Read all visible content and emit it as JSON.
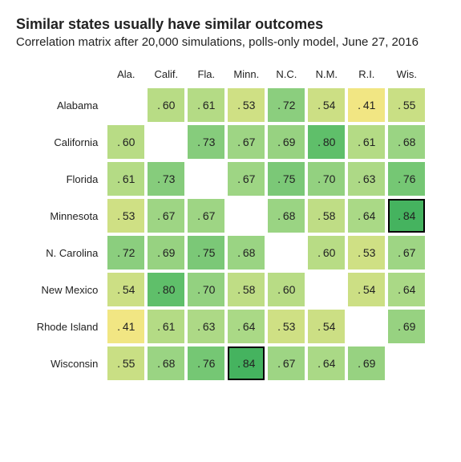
{
  "title": "Similar states usually have similar outcomes",
  "subtitle": "Correlation matrix after 20,000 simulations, polls-only model, June 27, 2016",
  "matrix": {
    "type": "heatmap",
    "col_labels": [
      "Ala.",
      "Calif.",
      "Fla.",
      "Minn.",
      "N.C.",
      "N.M.",
      "R.I.",
      "Wis."
    ],
    "row_labels": [
      "Alabama",
      "California",
      "Florida",
      "Minnesota",
      "N. Carolina",
      "New Mexico",
      "Rhode Island",
      "Wisconsin"
    ],
    "values": [
      [
        null,
        0.6,
        0.61,
        0.53,
        0.72,
        0.54,
        0.41,
        0.55
      ],
      [
        0.6,
        null,
        0.73,
        0.67,
        0.69,
        0.8,
        0.61,
        0.68
      ],
      [
        0.61,
        0.73,
        null,
        0.67,
        0.75,
        0.7,
        0.63,
        0.76
      ],
      [
        0.53,
        0.67,
        0.67,
        null,
        0.68,
        0.58,
        0.64,
        0.84
      ],
      [
        0.72,
        0.69,
        0.75,
        0.68,
        null,
        0.6,
        0.53,
        0.67
      ],
      [
        0.54,
        0.8,
        0.7,
        0.58,
        0.6,
        null,
        0.54,
        0.64
      ],
      [
        0.41,
        0.61,
        0.63,
        0.64,
        0.53,
        0.54,
        null,
        0.69
      ],
      [
        0.55,
        0.68,
        0.76,
        0.84,
        0.67,
        0.64,
        0.69,
        null
      ]
    ],
    "highlighted": [
      [
        3,
        7
      ],
      [
        7,
        3
      ]
    ],
    "color_scale": {
      "stops": [
        {
          "v": 0.4,
          "color": "#f4e683"
        },
        {
          "v": 0.55,
          "color": "#c9df84"
        },
        {
          "v": 0.65,
          "color": "#a6d886"
        },
        {
          "v": 0.72,
          "color": "#8bce7e"
        },
        {
          "v": 0.8,
          "color": "#5fbf6a"
        },
        {
          "v": 0.85,
          "color": "#3eb05c"
        }
      ]
    },
    "cell_fontsize": 14,
    "header_fontsize": 13,
    "background_color": "#ffffff",
    "text_color": "#222222",
    "highlight_border": "#000000"
  }
}
